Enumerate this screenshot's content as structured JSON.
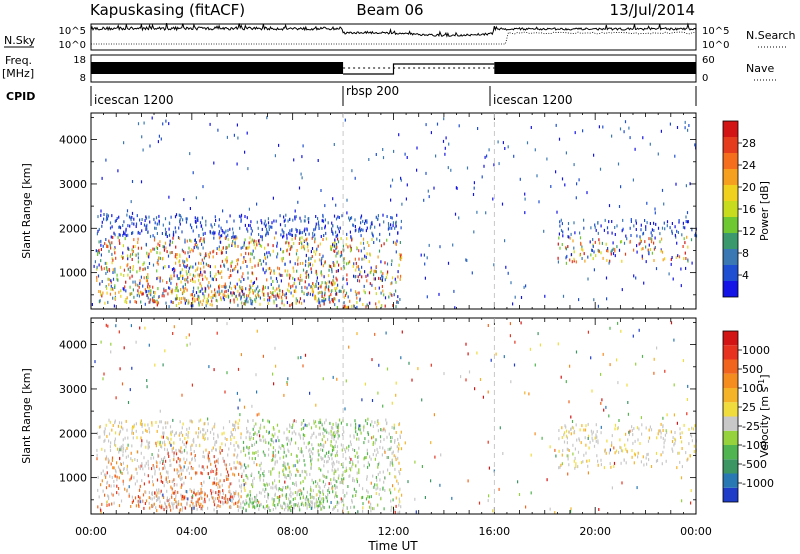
{
  "header": {
    "station": "Kapuskasing (fitACF)",
    "beam": "Beam 06",
    "date": "13/Jul/2014"
  },
  "chart_data": {
    "type": "heatmap",
    "x_axis": {
      "label": "Time UT",
      "range_hours": [
        0,
        24
      ],
      "ticks": [
        {
          "value": 0,
          "label": "00:00"
        },
        {
          "value": 4,
          "label": "04:00"
        },
        {
          "value": 8,
          "label": "08:00"
        },
        {
          "value": 12,
          "label": "12:00"
        },
        {
          "value": 16,
          "label": "16:00"
        },
        {
          "value": 20,
          "label": "20:00"
        },
        {
          "value": 24,
          "label": "00:00"
        }
      ]
    },
    "mode_dividers_hours": [
      10,
      16
    ],
    "top_strips": {
      "nsky": {
        "label": "N.Sky",
        "left_ticks": [
          "10^5",
          "10^0"
        ],
        "right_label": "N.Search",
        "right_ticks": [
          "10^5",
          "10^0"
        ]
      },
      "freq": {
        "label_line1": "Freq.",
        "label_line2": "[MHz]",
        "left_ticks": [
          "18",
          "8"
        ],
        "right_label": "Nave",
        "right_ticks": [
          "60",
          "0"
        ]
      },
      "cpid": {
        "label": "CPID",
        "segments": [
          {
            "start": 0,
            "end": 10,
            "label": "icescan 1200"
          },
          {
            "start": 10,
            "end": 16,
            "label": "rbsp 200"
          },
          {
            "start": 16,
            "end": 24,
            "label": "icescan 1200"
          }
        ]
      }
    },
    "panels": [
      {
        "name": "power",
        "ylabel": "Slant Range [km]",
        "yticks": [
          1000,
          2000,
          3000,
          4000
        ],
        "yrange_km": [
          180,
          4600
        ],
        "colorbar": {
          "label": "Power [dB]",
          "ticks": [
            "4",
            "8",
            "12",
            "16",
            "20",
            "24",
            "28"
          ],
          "colors": [
            "#1414e6",
            "#1e4fd2",
            "#3a78b4",
            "#3a9a6e",
            "#6ec832",
            "#c8dc1e",
            "#f0d21e",
            "#f5a01e",
            "#f56e1e",
            "#e63c1e",
            "#d21414"
          ]
        }
      },
      {
        "name": "velocity",
        "ylabel": "Slant Range [km]",
        "yticks": [
          1000,
          2000,
          3000,
          4000
        ],
        "yrange_km": [
          180,
          4600
        ],
        "colorbar": {
          "label": "Velocity [m s^-1]",
          "ticks": [
            "1000",
            "500",
            "100",
            "25",
            "-25",
            "-100",
            "-500",
            "-1000"
          ],
          "colors": [
            "#1e3cc8",
            "#2878b4",
            "#3c9664",
            "#50b450",
            "#96d23c",
            "#c8c8c8",
            "#f0dc3c",
            "#f5b428",
            "#f58c1e",
            "#f0641e",
            "#e6321e",
            "#d21414"
          ]
        }
      }
    ]
  }
}
